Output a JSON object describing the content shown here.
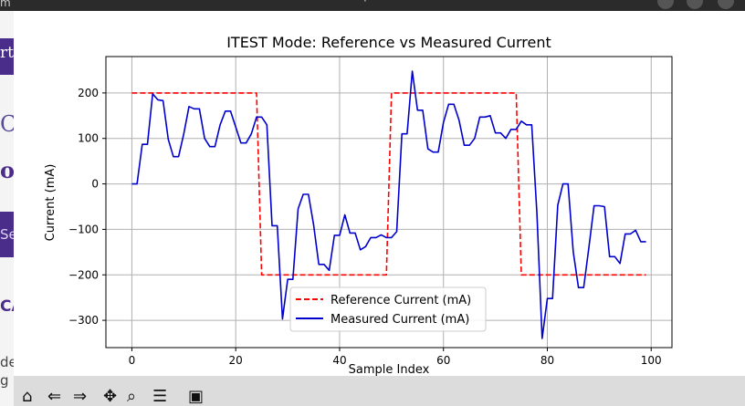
{
  "window": {
    "title_fragment": "m"
  },
  "background_fragments": {
    "frag_rt": "rt",
    "frag_c": "C",
    "frag_o": "o",
    "frag_se": "Se",
    "frag_ca": "CA",
    "frag_de": "de",
    "frag_g": "g"
  },
  "toolbar": {
    "tools": [
      {
        "name": "home-icon",
        "glyph": "⌂"
      },
      {
        "name": "back-icon",
        "glyph": "⇐"
      },
      {
        "name": "forward-icon",
        "glyph": "⇒"
      },
      {
        "name": "pan-icon",
        "glyph": "✥"
      },
      {
        "name": "zoom-icon",
        "glyph": "⌕"
      },
      {
        "name": "configure-icon",
        "glyph": "☰"
      },
      {
        "name": "save-icon",
        "glyph": "▣"
      }
    ]
  },
  "chart_data": {
    "type": "line",
    "title": "ITEST Mode: Reference vs Measured Current",
    "xlabel": "Sample Index",
    "ylabel": "Current (mA)",
    "xlim": [
      -5,
      104
    ],
    "ylim": [
      -360,
      280
    ],
    "xticks": [
      0,
      20,
      40,
      60,
      80,
      100
    ],
    "yticks": [
      -300,
      -200,
      -100,
      0,
      100,
      200
    ],
    "grid": true,
    "legend_position": "lower-center",
    "series": [
      {
        "name": "Reference Current (mA)",
        "color": "#ff0000",
        "style": "dashed",
        "x": [
          0,
          24,
          25,
          49,
          50,
          74,
          75,
          99
        ],
        "y": [
          200,
          200,
          -200,
          -200,
          200,
          200,
          -200,
          -200
        ]
      },
      {
        "name": "Measured Current (mA)",
        "color": "#0000cc",
        "style": "solid",
        "x": [
          0,
          1,
          2,
          3,
          4,
          5,
          6,
          7,
          8,
          9,
          10,
          11,
          12,
          13,
          14,
          15,
          16,
          17,
          18,
          19,
          20,
          21,
          22,
          23,
          24,
          25,
          26,
          27,
          28,
          29,
          30,
          31,
          32,
          33,
          34,
          35,
          36,
          37,
          38,
          39,
          40,
          41,
          42,
          43,
          44,
          45,
          46,
          47,
          48,
          49,
          50,
          51,
          52,
          53,
          54,
          55,
          56,
          57,
          58,
          59,
          60,
          61,
          62,
          63,
          64,
          65,
          66,
          67,
          68,
          69,
          70,
          71,
          72,
          73,
          74,
          75,
          76,
          77,
          78,
          79,
          80,
          81,
          82,
          83,
          84,
          85,
          86,
          87,
          88,
          89,
          90,
          91,
          92,
          93,
          94,
          95,
          96,
          97,
          98,
          99
        ],
        "y": [
          0,
          0,
          87,
          87,
          198,
          185,
          183,
          98,
          60,
          60,
          110,
          170,
          165,
          165,
          100,
          82,
          82,
          130,
          160,
          160,
          125,
          90,
          90,
          110,
          147,
          147,
          130,
          -92,
          -92,
          -297,
          -210,
          -210,
          -55,
          -23,
          -23,
          -90,
          -177,
          -177,
          -190,
          -113,
          -113,
          -68,
          -108,
          -108,
          -145,
          -138,
          -118,
          -118,
          -112,
          -118,
          -118,
          -105,
          110,
          110,
          248,
          162,
          162,
          77,
          70,
          70,
          135,
          175,
          175,
          140,
          85,
          85,
          100,
          147,
          147,
          150,
          112,
          112,
          100,
          120,
          120,
          138,
          130,
          130,
          -65,
          -340,
          -252,
          -252,
          -47,
          0,
          0,
          -150,
          -228,
          -228,
          -140,
          -48,
          -48,
          -50,
          -160,
          -160,
          -175,
          -110,
          -110,
          -102,
          -127,
          -127
        ]
      }
    ]
  }
}
